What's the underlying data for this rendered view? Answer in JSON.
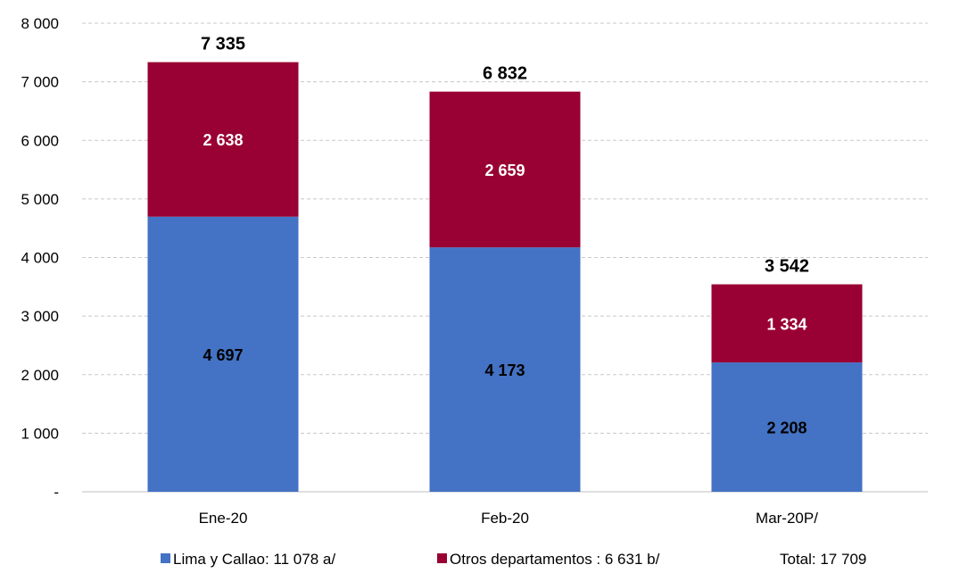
{
  "chart_data": {
    "type": "bar",
    "stacked": true,
    "categories": [
      "Ene-20",
      "Feb-20",
      "Mar-20P/"
    ],
    "series": [
      {
        "name": "Lima y Callao: 11 078 a/",
        "values": [
          4697,
          4173,
          2208
        ],
        "color": "#4472C4",
        "label_color": "#000000"
      },
      {
        "name": "Otros departamentos : 6 631 b/",
        "values": [
          2638,
          2659,
          1334
        ],
        "color": "#990033",
        "label_color": "#ffffff"
      }
    ],
    "totals": [
      7335,
      6832,
      3542
    ],
    "total_labels": [
      "7 335",
      "6 832",
      "3 542"
    ],
    "segment_labels": [
      [
        "4 697",
        "4 173",
        "2 208"
      ],
      [
        "2 638",
        "2 659",
        "1 334"
      ]
    ],
    "ylim": [
      0,
      8000
    ],
    "yticks": [
      0,
      1000,
      2000,
      3000,
      4000,
      5000,
      6000,
      7000,
      8000
    ],
    "ytick_labels": [
      "-",
      "1 000",
      "2 000",
      "3 000",
      "4 000",
      "5 000",
      "6 000",
      "7 000",
      "8 000"
    ],
    "grid": true,
    "legend_position": "bottom",
    "legend_extra": "Total: 17 709"
  }
}
